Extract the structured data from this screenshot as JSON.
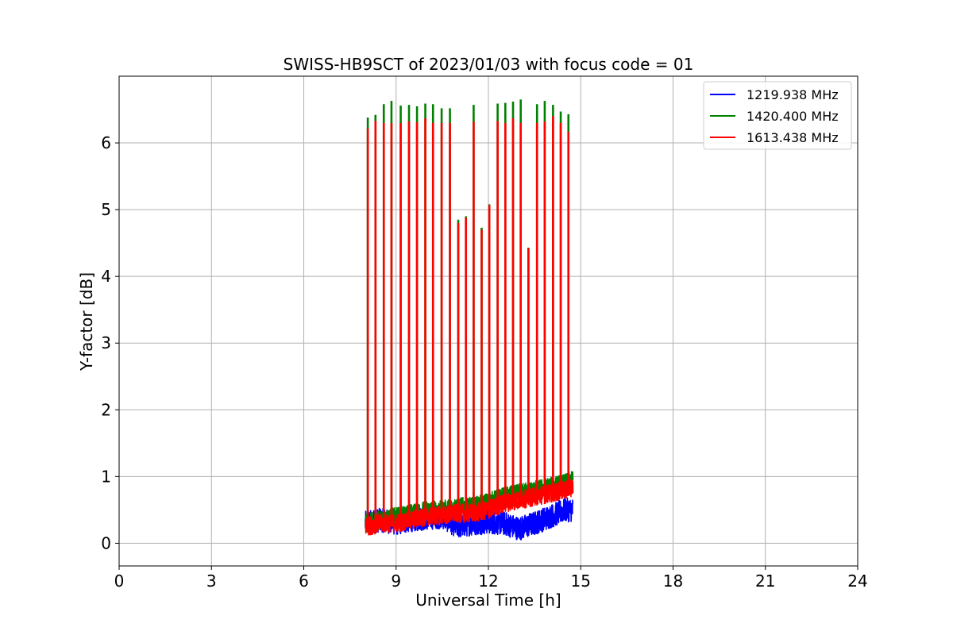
{
  "chart_data": {
    "type": "line",
    "title": "SWISS-HB9SCT of 2023/01/03 with focus code = 01",
    "xlabel": "Universal Time [h]",
    "ylabel": "Y-factor [dB]",
    "xlim": [
      0,
      24
    ],
    "ylim": [
      -0.34,
      7.0
    ],
    "xticks": [
      0,
      3,
      6,
      9,
      12,
      15,
      18,
      21,
      24
    ],
    "yticks": [
      0,
      1,
      2,
      3,
      4,
      5,
      6
    ],
    "grid": true,
    "legend_position": "top-right",
    "series": [
      {
        "name": "1219.938 MHz",
        "color": "#0000ff",
        "x": [
          8.0,
          8.5,
          9.0,
          9.5,
          10.0,
          10.5,
          11.0,
          11.5,
          12.0,
          12.5,
          13.0,
          13.5,
          14.0,
          14.5,
          14.75
        ],
        "y": [
          0.3,
          0.35,
          0.3,
          0.35,
          0.38,
          0.4,
          0.25,
          0.3,
          0.32,
          0.3,
          0.22,
          0.3,
          0.4,
          0.5,
          0.5
        ]
      },
      {
        "name": "1420.400 MHz",
        "color": "#008000",
        "x": [
          8.0,
          8.5,
          9.0,
          9.5,
          10.0,
          10.5,
          11.0,
          11.5,
          12.0,
          12.5,
          13.0,
          13.5,
          14.0,
          14.5,
          14.75
        ],
        "y": [
          0.3,
          0.35,
          0.4,
          0.45,
          0.5,
          0.5,
          0.55,
          0.55,
          0.62,
          0.7,
          0.75,
          0.8,
          0.85,
          0.9,
          0.95
        ],
        "peaks": [
          {
            "x": 8.08,
            "y": 6.38
          },
          {
            "x": 8.33,
            "y": 6.42
          },
          {
            "x": 8.6,
            "y": 6.58
          },
          {
            "x": 8.85,
            "y": 6.63
          },
          {
            "x": 9.15,
            "y": 6.56
          },
          {
            "x": 9.42,
            "y": 6.57
          },
          {
            "x": 9.68,
            "y": 6.55
          },
          {
            "x": 9.95,
            "y": 6.59
          },
          {
            "x": 10.2,
            "y": 6.58
          },
          {
            "x": 10.48,
            "y": 6.52
          },
          {
            "x": 10.75,
            "y": 6.52
          },
          {
            "x": 11.02,
            "y": 4.85
          },
          {
            "x": 11.27,
            "y": 4.9
          },
          {
            "x": 11.52,
            "y": 6.57
          },
          {
            "x": 11.78,
            "y": 4.73
          },
          {
            "x": 12.03,
            "y": 5.08
          },
          {
            "x": 12.3,
            "y": 6.59
          },
          {
            "x": 12.55,
            "y": 6.6
          },
          {
            "x": 12.8,
            "y": 6.62
          },
          {
            "x": 13.05,
            "y": 6.65
          },
          {
            "x": 13.3,
            "y": 4.43
          },
          {
            "x": 13.58,
            "y": 6.58
          },
          {
            "x": 13.83,
            "y": 6.63
          },
          {
            "x": 14.1,
            "y": 6.57
          },
          {
            "x": 14.35,
            "y": 6.47
          },
          {
            "x": 14.6,
            "y": 6.43
          }
        ]
      },
      {
        "name": "1613.438 MHz",
        "color": "#ff0000",
        "x": [
          8.0,
          8.5,
          9.0,
          9.5,
          10.0,
          10.5,
          11.0,
          11.5,
          12.0,
          12.5,
          13.0,
          13.5,
          14.0,
          14.5,
          14.75
        ],
        "y": [
          0.25,
          0.3,
          0.3,
          0.35,
          0.4,
          0.42,
          0.45,
          0.45,
          0.5,
          0.6,
          0.65,
          0.7,
          0.75,
          0.8,
          0.85
        ],
        "peaks": [
          {
            "x": 8.08,
            "y": 6.22
          },
          {
            "x": 8.33,
            "y": 6.33
          },
          {
            "x": 8.6,
            "y": 6.3
          },
          {
            "x": 8.85,
            "y": 6.3
          },
          {
            "x": 9.15,
            "y": 6.3
          },
          {
            "x": 9.42,
            "y": 6.32
          },
          {
            "x": 9.68,
            "y": 6.31
          },
          {
            "x": 9.95,
            "y": 6.37
          },
          {
            "x": 10.2,
            "y": 6.3
          },
          {
            "x": 10.48,
            "y": 6.3
          },
          {
            "x": 10.75,
            "y": 6.3
          },
          {
            "x": 11.02,
            "y": 4.8
          },
          {
            "x": 11.27,
            "y": 4.88
          },
          {
            "x": 11.52,
            "y": 6.32
          },
          {
            "x": 11.78,
            "y": 4.7
          },
          {
            "x": 12.03,
            "y": 5.07
          },
          {
            "x": 12.3,
            "y": 6.33
          },
          {
            "x": 12.55,
            "y": 6.3
          },
          {
            "x": 12.8,
            "y": 6.37
          },
          {
            "x": 13.05,
            "y": 6.3
          },
          {
            "x": 13.3,
            "y": 4.42
          },
          {
            "x": 13.58,
            "y": 6.3
          },
          {
            "x": 13.83,
            "y": 6.32
          },
          {
            "x": 14.1,
            "y": 6.4
          },
          {
            "x": 14.35,
            "y": 6.3
          },
          {
            "x": 14.6,
            "y": 6.17
          }
        ]
      }
    ]
  }
}
